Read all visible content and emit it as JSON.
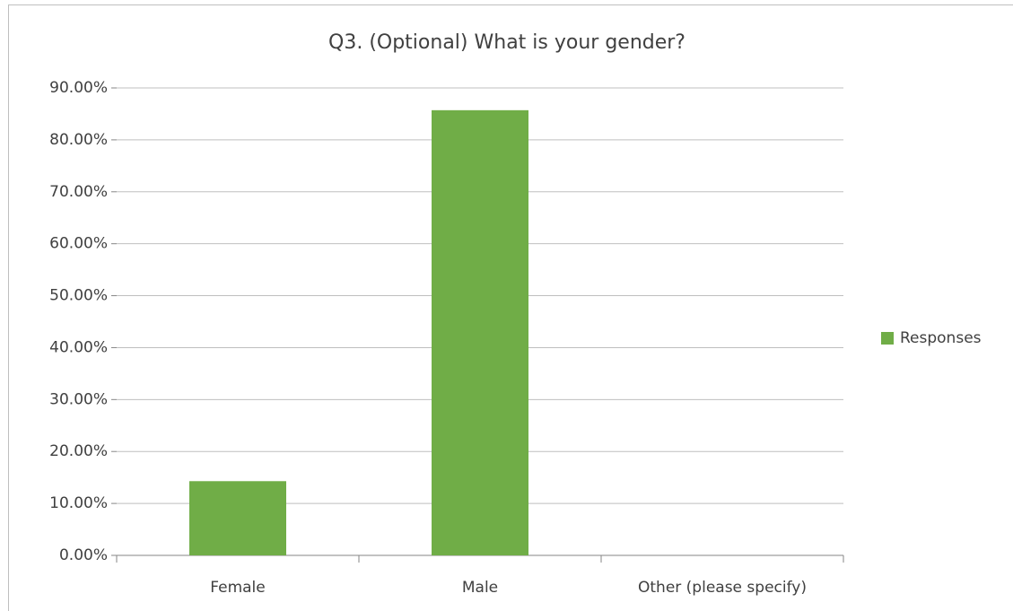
{
  "chart_data": {
    "type": "bar",
    "title": "Q3. (Optional) What is your gender?",
    "categories": [
      "Female",
      "Male",
      "Other (please specify)"
    ],
    "series": [
      {
        "name": "Responses",
        "color": "#70ad47",
        "values": [
          14.29,
          85.71,
          0
        ]
      }
    ],
    "ylim": [
      0,
      90
    ],
    "yticks": [
      {
        "value": 0,
        "label": "0.00%"
      },
      {
        "value": 10,
        "label": "10.00%"
      },
      {
        "value": 20,
        "label": "20.00%"
      },
      {
        "value": 30,
        "label": "30.00%"
      },
      {
        "value": 40,
        "label": "40.00%"
      },
      {
        "value": 50,
        "label": "50.00%"
      },
      {
        "value": 60,
        "label": "60.00%"
      },
      {
        "value": 70,
        "label": "70.00%"
      },
      {
        "value": 80,
        "label": "80.00%"
      },
      {
        "value": 90,
        "label": "90.00%"
      }
    ],
    "grid": true,
    "legend": "right"
  }
}
